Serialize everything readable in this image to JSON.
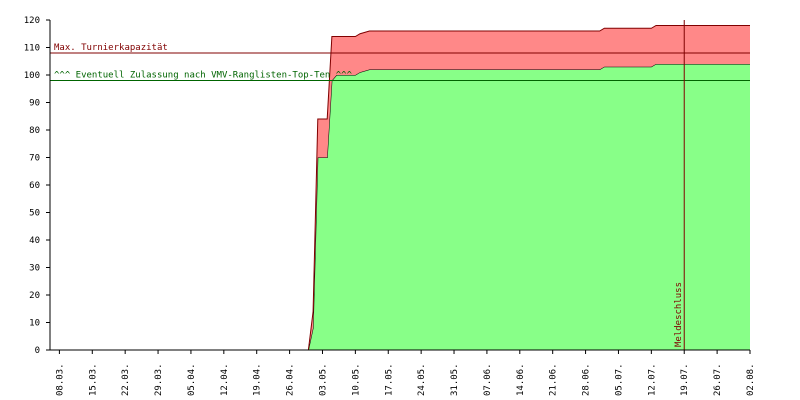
{
  "chart_data": {
    "type": "stacked-area",
    "x": [
      "30.04.",
      "01.05.",
      "02.05.",
      "03.05.",
      "04.05.",
      "05.05.",
      "06.05.",
      "10.05.",
      "11.05.",
      "13.05.",
      "01.07.",
      "02.07.",
      "12.07.",
      "13.07.",
      "02.08."
    ],
    "series": [
      {
        "color": "#88ff88",
        "values": [
          0,
          8,
          70,
          70,
          70,
          98,
          100,
          100,
          101,
          102,
          102,
          103,
          103,
          104,
          104
        ]
      },
      {
        "color": "#ff8888",
        "values": [
          0,
          6,
          14,
          14,
          14,
          16,
          14,
          14,
          14,
          14,
          14,
          14,
          14,
          14,
          14
        ]
      }
    ],
    "xlim": [
      "06.03.",
      "02.08."
    ],
    "xticks": [
      "08.03.",
      "15.03.",
      "22.03.",
      "29.03.",
      "05.04.",
      "12.04.",
      "19.04.",
      "26.04.",
      "03.05.",
      "10.05.",
      "17.05.",
      "24.05.",
      "31.05.",
      "07.06.",
      "14.06.",
      "21.06.",
      "28.06.",
      "05.07.",
      "12.07.",
      "19.07.",
      "26.07.",
      "02.08."
    ],
    "ylim": [
      0,
      120
    ],
    "yticks": [
      0,
      10,
      20,
      30,
      40,
      50,
      60,
      70,
      80,
      90,
      100,
      110,
      120
    ],
    "hlines": [
      {
        "value": 108,
        "label": "Max. Turnierkapazität",
        "color": "#800000"
      },
      {
        "value": 98,
        "label": "^^^ Eventuell Zulassung nach VMV-Ranglisten-Top-Ten ^^^",
        "color": "#006400"
      }
    ],
    "vlines": [
      {
        "x": "19.07.",
        "label": "Meldeschluss",
        "color": "#800000"
      }
    ]
  }
}
